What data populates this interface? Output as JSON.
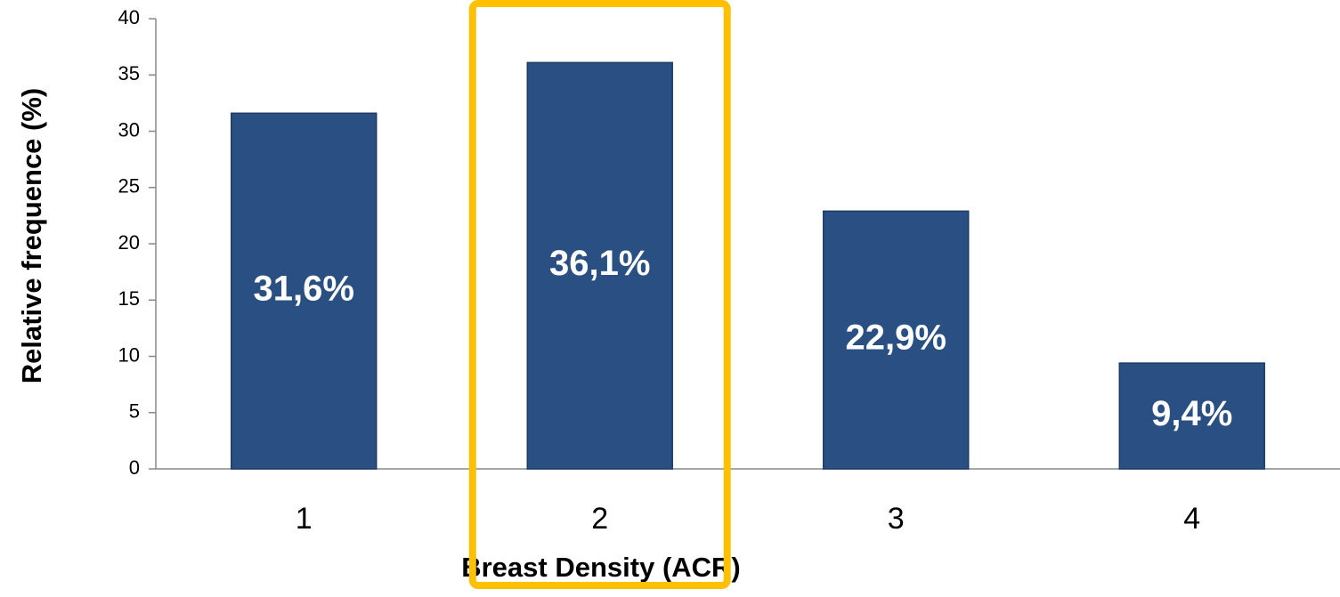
{
  "chart_data": {
    "type": "bar",
    "x_label": "Breast Density  (ACR)",
    "y_label": "Relative frequence  (%)",
    "categories": [
      "1",
      "2",
      "3",
      "4"
    ],
    "values": [
      31.6,
      36.1,
      22.9,
      9.4
    ],
    "value_labels": [
      "31,6%",
      "36,1%",
      "22,9%",
      "9,4%"
    ],
    "color": "#2a5083",
    "highlight": "2",
    "highlight_color": "#ffc000",
    "ylim": [
      0,
      40
    ],
    "yticks": [
      0,
      5,
      10,
      15,
      20,
      25,
      30,
      35,
      40
    ],
    "grid": false
  }
}
